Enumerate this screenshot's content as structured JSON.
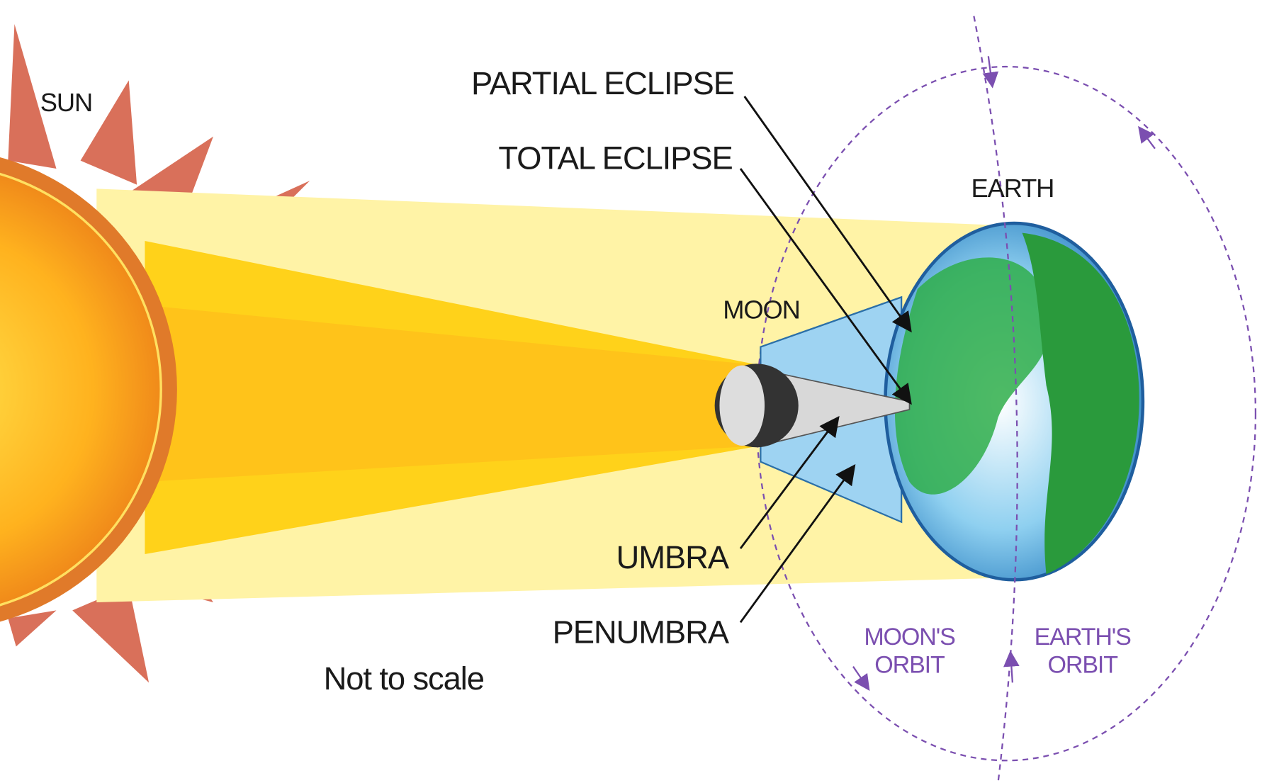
{
  "labels": {
    "sun": "SUN",
    "partial_eclipse": "PARTIAL ECLIPSE",
    "total_eclipse": "TOTAL ECLIPSE",
    "earth": "EARTH",
    "moon": "MOON",
    "umbra": "UMBRA",
    "penumbra": "PENUMBRA",
    "note": "Not to scale",
    "moons_orbit": [
      "MOON'S",
      "ORBIT"
    ],
    "earths_orbit": [
      "EARTH'S",
      "ORBIT"
    ]
  }
}
